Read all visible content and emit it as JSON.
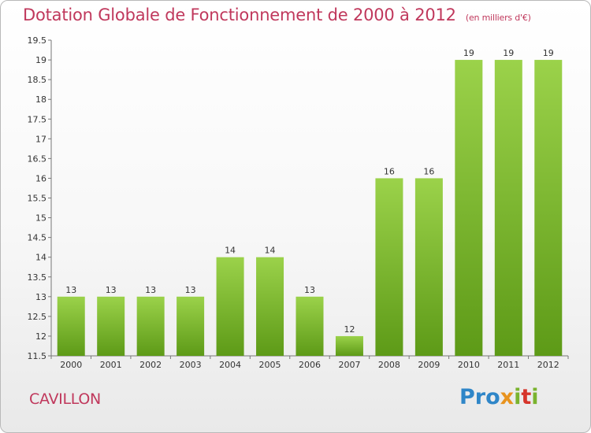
{
  "title": "Dotation Globale de Fonctionnement de 2000 à 2012",
  "subtitle": "(en milliers d'€)",
  "commune": "CAVILLON",
  "logo": {
    "p1": "Pro",
    "p2": "x",
    "p3": "i",
    "p4": "t",
    "p5": "i"
  },
  "colors": {
    "title": "#c0385c",
    "bar_top": "#9bd24a",
    "bar_bottom": "#5d9a17"
  },
  "chart_data": {
    "type": "bar",
    "categories": [
      "2000",
      "2001",
      "2002",
      "2003",
      "2004",
      "2005",
      "2006",
      "2007",
      "2008",
      "2009",
      "2010",
      "2011",
      "2012"
    ],
    "values": [
      13,
      13,
      13,
      13,
      14,
      14,
      13,
      12,
      16,
      16,
      19,
      19,
      19
    ],
    "ylim": [
      11.5,
      19.5
    ],
    "yticks": [
      11.5,
      12,
      12.5,
      13,
      13.5,
      14,
      14.5,
      15,
      15.5,
      16,
      16.5,
      17,
      17.5,
      18,
      18.5,
      19,
      19.5
    ],
    "title": "Dotation Globale de Fonctionnement de 2000 à 2012",
    "xlabel": "",
    "ylabel": "",
    "grid": false
  }
}
